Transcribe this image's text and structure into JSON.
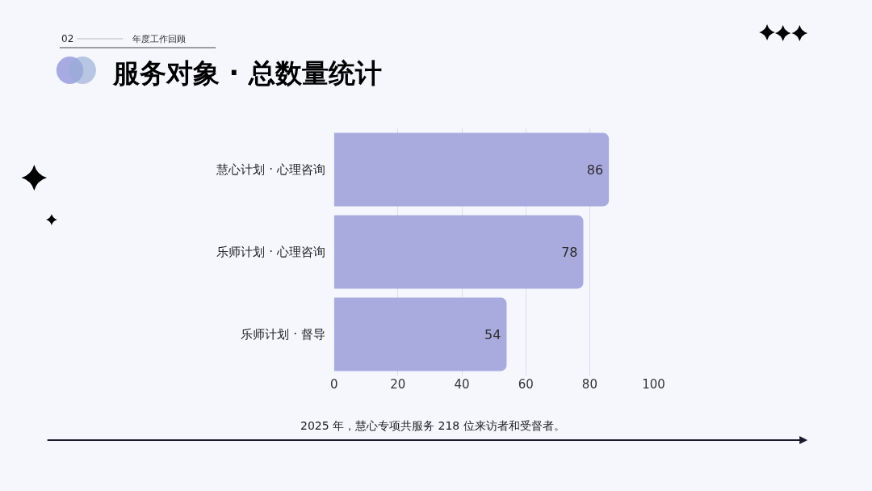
{
  "chart_data": {
    "type": "bar",
    "orientation": "horizontal",
    "title": "服务对象 · 总数量统计",
    "subtitle": "年度工作回顾",
    "categories": [
      "慧心计划 · 心理咨询",
      "乐师计划 · 心理咨询",
      "乐师计划 · 督导"
    ],
    "values": [
      86,
      78,
      54
    ],
    "color": "#a9abdf",
    "data_labels": true,
    "xlim": [
      0,
      100
    ],
    "xticks": [
      0,
      20,
      40,
      60,
      80,
      100
    ],
    "grid": "x",
    "annotations": [
      "02",
      "2025 年，慧心专项共服务 218 位来访者和受督者。"
    ]
  }
}
